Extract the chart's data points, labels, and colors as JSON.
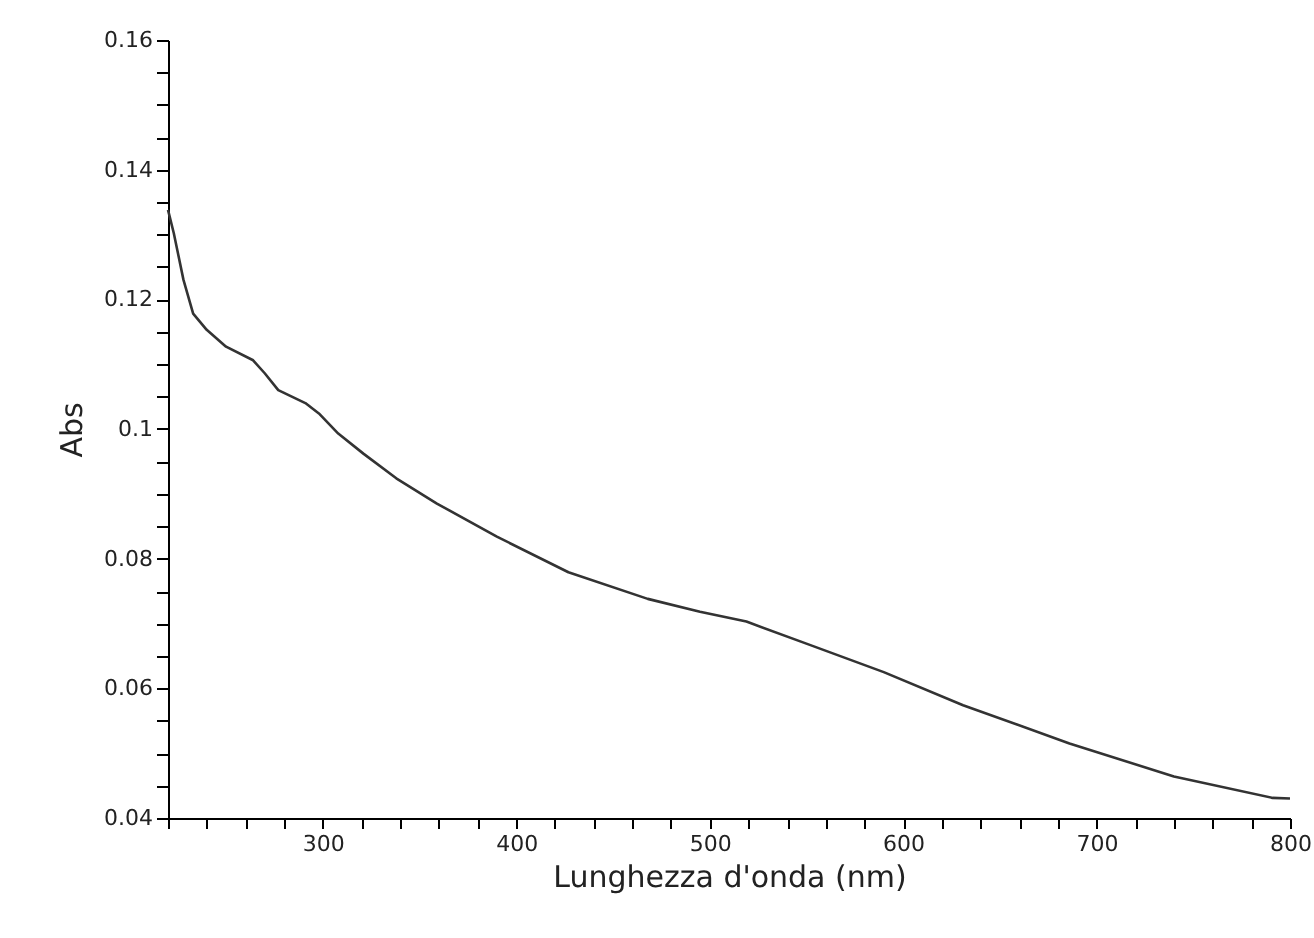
{
  "chart_data": {
    "type": "line",
    "xlabel": "Lunghezza d'onda (nm)",
    "ylabel": "Abs",
    "series": [
      {
        "color": "#333333",
        "x": [
          220,
          223,
          228,
          233,
          240,
          250,
          264,
          270,
          277,
          291,
          298,
          308,
          321,
          338,
          359,
          390,
          427,
          468,
          495,
          519,
          550,
          590,
          631,
          686,
          740,
          791,
          800
        ],
        "values": [
          0.1338,
          0.1302,
          0.123,
          0.1178,
          0.1153,
          0.1127,
          0.1106,
          0.1086,
          0.106,
          0.104,
          0.1024,
          0.0993,
          0.0962,
          0.0924,
          0.0885,
          0.0834,
          0.0779,
          0.0738,
          0.0718,
          0.0703,
          0.0669,
          0.0625,
          0.0574,
          0.0515,
          0.0464,
          0.0431,
          0.043
        ]
      }
    ],
    "xlim": [
      220,
      800
    ],
    "xticks": [
      {
        "value": 220,
        "label": null
      },
      {
        "value": 240,
        "label": null
      },
      {
        "value": 260,
        "label": null
      },
      {
        "value": 280,
        "label": null
      },
      300,
      {
        "value": 320,
        "label": null
      },
      {
        "value": 340,
        "label": null
      },
      {
        "value": 360,
        "label": null
      },
      {
        "value": 380,
        "label": null
      },
      400,
      {
        "value": 420,
        "label": null
      },
      {
        "value": 440,
        "label": null
      },
      {
        "value": 460,
        "label": null
      },
      {
        "value": 480,
        "label": null
      },
      500,
      {
        "value": 520,
        "label": null
      },
      {
        "value": 540,
        "label": null
      },
      {
        "value": 560,
        "label": null
      },
      {
        "value": 580,
        "label": null
      },
      600,
      {
        "value": 620,
        "label": null
      },
      {
        "value": 640,
        "label": null
      },
      {
        "value": 660,
        "label": null
      },
      {
        "value": 680,
        "label": null
      },
      700,
      {
        "value": 720,
        "label": null
      },
      {
        "value": 740,
        "label": null
      },
      {
        "value": 760,
        "label": null
      },
      {
        "value": 780,
        "label": null
      },
      800
    ],
    "ylim": [
      0.04,
      0.16
    ],
    "yticks": [
      0.04,
      {
        "value": 0.045,
        "label": null
      },
      {
        "value": 0.05,
        "label": null
      },
      {
        "value": 0.055,
        "label": null
      },
      0.06,
      {
        "value": 0.065,
        "label": null
      },
      {
        "value": 0.07,
        "label": null
      },
      {
        "value": 0.075,
        "label": null
      },
      0.08,
      {
        "value": 0.085,
        "label": null
      },
      {
        "value": 0.09,
        "label": null
      },
      {
        "value": 0.095,
        "label": null
      },
      0.1,
      {
        "value": 0.105,
        "label": null
      },
      {
        "value": 0.11,
        "label": null
      },
      {
        "value": 0.115,
        "label": null
      },
      0.12,
      {
        "value": 0.125,
        "label": null
      },
      {
        "value": 0.13,
        "label": null
      },
      {
        "value": 0.135,
        "label": null
      },
      0.14,
      {
        "value": 0.145,
        "label": null
      },
      {
        "value": 0.15,
        "label": null
      },
      {
        "value": 0.155,
        "label": null
      },
      0.16
    ],
    "marker": "none",
    "line_style": "solid"
  }
}
